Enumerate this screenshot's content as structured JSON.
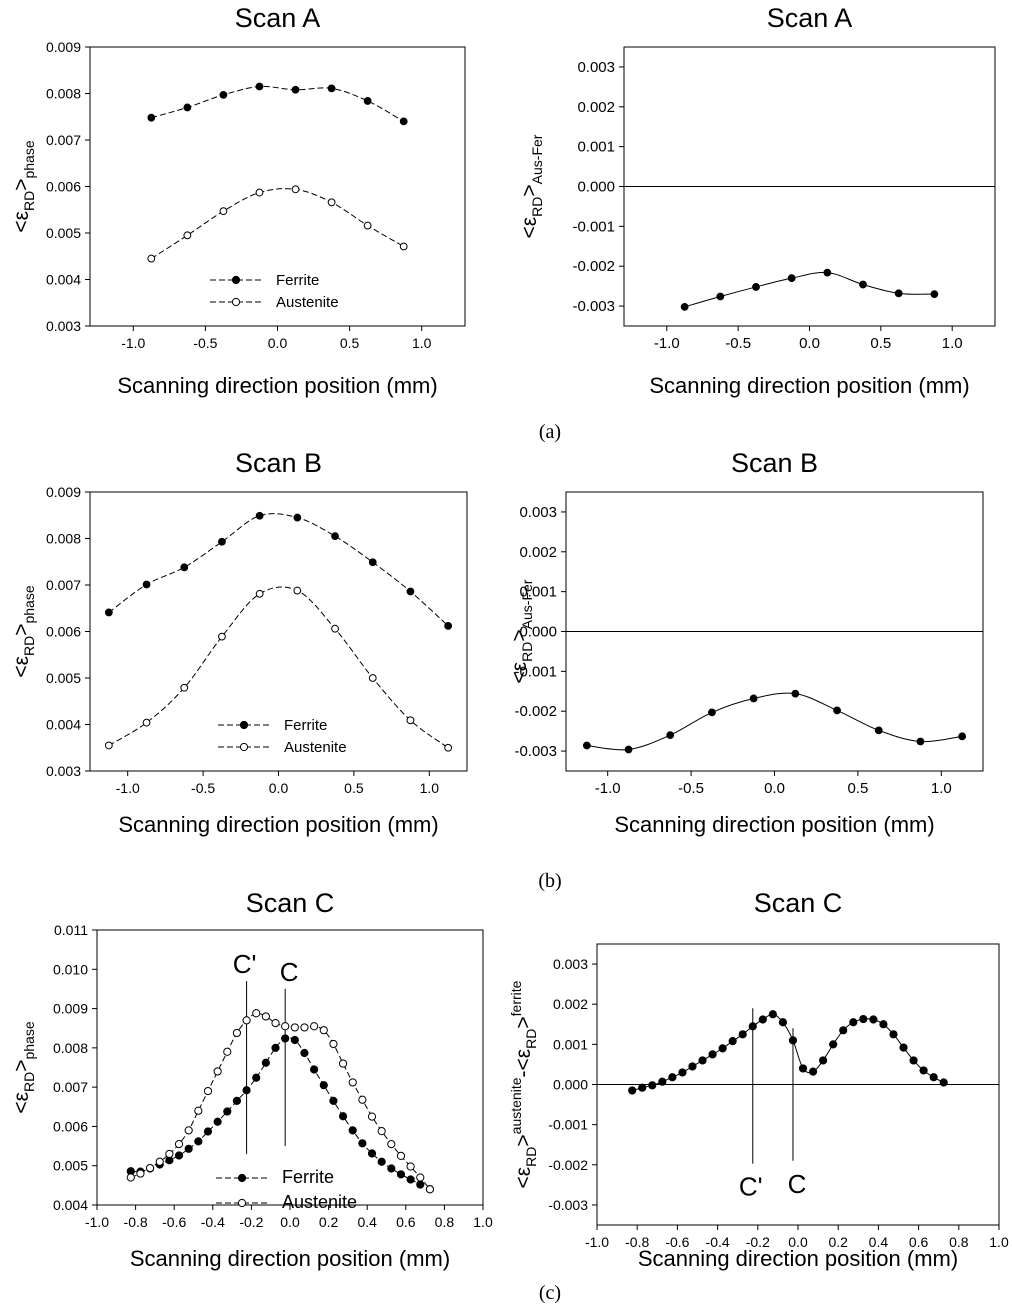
{
  "captions": [
    "(a)",
    "(b)",
    "(c)"
  ],
  "chart_data": [
    {
      "id": "a_left",
      "type": "line",
      "title": "Scan A",
      "xlabel": "Scanning direction position (mm)",
      "ylabel": {
        "main": "<ε",
        "sub": "RD",
        "rest": ">",
        "tail": "phase"
      },
      "xlim": [
        -1.3,
        1.3
      ],
      "ylim": [
        0.003,
        0.009
      ],
      "xticks": [
        -1.0,
        -0.5,
        0.0,
        0.5,
        1.0
      ],
      "xtick_labels": [
        "-1.0",
        "-0.5",
        "0.0",
        "0.5",
        "1.0"
      ],
      "yticks": [
        0.003,
        0.004,
        0.005,
        0.006,
        0.007,
        0.008,
        0.009
      ],
      "ytick_labels": [
        "0.003",
        "0.004",
        "0.005",
        "0.006",
        "0.007",
        "0.008",
        "0.009"
      ],
      "legend": {
        "position": "bottom-center",
        "entries": [
          "Ferrite",
          "Austenite"
        ]
      },
      "series": [
        {
          "name": "Ferrite",
          "marker": "filled",
          "line": "dashed",
          "x": [
            -0.875,
            -0.625,
            -0.375,
            -0.125,
            0.125,
            0.375,
            0.625,
            0.875
          ],
          "y": [
            0.00748,
            0.0077,
            0.00797,
            0.00815,
            0.00808,
            0.00811,
            0.00784,
            0.0074
          ]
        },
        {
          "name": "Austenite",
          "marker": "open",
          "line": "dashed",
          "x": [
            -0.875,
            -0.625,
            -0.375,
            -0.125,
            0.125,
            0.375,
            0.625,
            0.875
          ],
          "y": [
            0.00445,
            0.00495,
            0.00547,
            0.00587,
            0.00594,
            0.00566,
            0.00516,
            0.00471
          ]
        }
      ]
    },
    {
      "id": "a_right",
      "type": "line",
      "title": "Scan A",
      "xlabel": "Scanning direction position (mm)",
      "ylabel": {
        "main": "<ε",
        "sub": "RD",
        "rest": ">",
        "tail": "Aus-Fer"
      },
      "xlim": [
        -1.3,
        1.3
      ],
      "ylim": [
        -0.0035,
        0.0035
      ],
      "xticks": [
        -1.0,
        -0.5,
        0.0,
        0.5,
        1.0
      ],
      "xtick_labels": [
        "-1.0",
        "-0.5",
        "0.0",
        "0.5",
        "1.0"
      ],
      "yticks": [
        -0.003,
        -0.002,
        -0.001,
        0.0,
        0.001,
        0.002,
        0.003
      ],
      "ytick_labels": [
        "-0.003",
        "-0.002",
        "-0.001",
        "0.000",
        "0.001",
        "0.002",
        "0.003"
      ],
      "zero_line": true,
      "series": [
        {
          "marker": "filled",
          "line": "solid",
          "x": [
            -0.875,
            -0.625,
            -0.375,
            -0.125,
            0.125,
            0.375,
            0.625,
            0.875
          ],
          "y": [
            -0.00302,
            -0.00276,
            -0.00252,
            -0.0023,
            -0.00216,
            -0.00246,
            -0.00268,
            -0.0027
          ]
        }
      ]
    },
    {
      "id": "b_left",
      "type": "line",
      "title": "Scan B",
      "xlabel": "Scanning direction position (mm)",
      "ylabel": {
        "main": "<ε",
        "sub": "RD",
        "rest": ">",
        "tail": "phase"
      },
      "xlim": [
        -1.25,
        1.25
      ],
      "ylim": [
        0.003,
        0.009
      ],
      "xticks": [
        -1.0,
        -0.5,
        0.0,
        0.5,
        1.0
      ],
      "xtick_labels": [
        "-1.0",
        "-0.5",
        "0.0",
        "0.5",
        "1.0"
      ],
      "yticks": [
        0.003,
        0.004,
        0.005,
        0.006,
        0.007,
        0.008,
        0.009
      ],
      "ytick_labels": [
        "0.003",
        "0.004",
        "0.005",
        "0.006",
        "0.007",
        "0.008",
        "0.009"
      ],
      "legend": {
        "position": "bottom-center",
        "entries": [
          "Ferrite",
          "Austenite"
        ]
      },
      "series": [
        {
          "name": "Ferrite",
          "marker": "filled",
          "line": "dashed",
          "x": [
            -1.125,
            -0.875,
            -0.625,
            -0.375,
            -0.125,
            0.125,
            0.375,
            0.625,
            0.875,
            1.125
          ],
          "y": [
            0.00641,
            0.00701,
            0.00738,
            0.00793,
            0.00849,
            0.00845,
            0.00805,
            0.00749,
            0.00686,
            0.00612
          ]
        },
        {
          "name": "Austenite",
          "marker": "open",
          "line": "dashed",
          "x": [
            -1.125,
            -0.875,
            -0.625,
            -0.375,
            -0.125,
            0.125,
            0.375,
            0.625,
            0.875,
            1.125
          ],
          "y": [
            0.00355,
            0.00404,
            0.00479,
            0.00589,
            0.00681,
            0.00688,
            0.00606,
            0.005,
            0.00409,
            0.0035
          ]
        }
      ]
    },
    {
      "id": "b_right",
      "type": "line",
      "title": "Scan B",
      "xlabel": "Scanning direction position (mm)",
      "ylabel": {
        "main": "<ε",
        "sub": "RD",
        "rest": ">",
        "tail": "Aus-Fer"
      },
      "xlim": [
        -1.25,
        1.25
      ],
      "ylim": [
        -0.0035,
        0.0035
      ],
      "xticks": [
        -1.0,
        -0.5,
        0.0,
        0.5,
        1.0
      ],
      "xtick_labels": [
        "-1.0",
        "-0.5",
        "0.0",
        "0.5",
        "1.0"
      ],
      "yticks": [
        -0.003,
        -0.002,
        -0.001,
        0.0,
        0.001,
        0.002,
        0.003
      ],
      "ytick_labels": [
        "-0.003",
        "-0.002",
        "-0.001",
        "0.000",
        "0.001",
        "0.002",
        "0.003"
      ],
      "zero_line": true,
      "series": [
        {
          "marker": "filled",
          "line": "solid",
          "x": [
            -1.125,
            -0.875,
            -0.625,
            -0.375,
            -0.125,
            0.125,
            0.375,
            0.625,
            0.875,
            1.125
          ],
          "y": [
            -0.00286,
            -0.00296,
            -0.0026,
            -0.00203,
            -0.00168,
            -0.00156,
            -0.00198,
            -0.00248,
            -0.00276,
            -0.00263
          ]
        }
      ]
    },
    {
      "id": "c_left",
      "type": "line",
      "title": "Scan C",
      "xlabel": "Scanning direction position (mm)",
      "ylabel": {
        "main": "<ε",
        "sub": "RD",
        "rest": ">",
        "tail": "phase"
      },
      "xlim": [
        -1.0,
        1.0
      ],
      "ylim": [
        0.004,
        0.011
      ],
      "xticks": [
        -1.0,
        -0.8,
        -0.6,
        -0.4,
        -0.2,
        0.0,
        0.2,
        0.4,
        0.6,
        0.8,
        1.0
      ],
      "xtick_labels": [
        "-1.0",
        "-0.8",
        "-0.6",
        "-0.4",
        "-0.2",
        "0.0",
        "0.2",
        "0.4",
        "0.6",
        "0.8",
        "1.0"
      ],
      "yticks": [
        0.004,
        0.005,
        0.006,
        0.007,
        0.008,
        0.009,
        0.01,
        0.011
      ],
      "ytick_labels": [
        "0.004",
        "0.005",
        "0.006",
        "0.007",
        "0.008",
        "0.009",
        "0.010",
        "0.011"
      ],
      "legend": {
        "position": "bottom-center",
        "entries": [
          "Ferrite",
          "Austenite"
        ]
      },
      "annotations": [
        {
          "label": "C'",
          "x": -0.225,
          "y_from": 0.0053,
          "y_to": 0.0097
        },
        {
          "label": "C",
          "x": -0.025,
          "y_from": 0.0055,
          "y_to": 0.0095
        }
      ],
      "series": [
        {
          "name": "Ferrite",
          "marker": "filled",
          "line": "dashed",
          "x": [
            -0.825,
            -0.775,
            -0.725,
            -0.675,
            -0.625,
            -0.575,
            -0.525,
            -0.475,
            -0.425,
            -0.375,
            -0.325,
            -0.275,
            -0.225,
            -0.175,
            -0.125,
            -0.075,
            -0.025,
            0.025,
            0.075,
            0.125,
            0.175,
            0.225,
            0.275,
            0.325,
            0.375,
            0.425,
            0.475,
            0.525,
            0.575,
            0.625,
            0.675,
            0.725
          ],
          "y": [
            0.00486,
            0.00485,
            0.00493,
            0.00503,
            0.00514,
            0.00526,
            0.00543,
            0.00562,
            0.00587,
            0.00612,
            0.00638,
            0.00665,
            0.00692,
            0.00724,
            0.00762,
            0.008,
            0.00824,
            0.0082,
            0.00787,
            0.00745,
            0.00705,
            0.00665,
            0.00626,
            0.0059,
            0.00557,
            0.00531,
            0.0051,
            0.00493,
            0.00478,
            0.00465,
            0.00452,
            0.0044
          ]
        },
        {
          "name": "Austenite",
          "marker": "open",
          "line": "dashed",
          "x": [
            -0.825,
            -0.775,
            -0.725,
            -0.675,
            -0.625,
            -0.575,
            -0.525,
            -0.475,
            -0.425,
            -0.375,
            -0.325,
            -0.275,
            -0.225,
            -0.175,
            -0.125,
            -0.075,
            -0.025,
            0.025,
            0.075,
            0.125,
            0.175,
            0.225,
            0.275,
            0.325,
            0.375,
            0.425,
            0.475,
            0.525,
            0.575,
            0.625,
            0.675,
            0.725
          ],
          "y": [
            0.0047,
            0.0048,
            0.00494,
            0.0051,
            0.0053,
            0.00555,
            0.0059,
            0.0064,
            0.0069,
            0.0074,
            0.0079,
            0.00838,
            0.0087,
            0.00888,
            0.0088,
            0.00863,
            0.00855,
            0.00852,
            0.00852,
            0.00855,
            0.00845,
            0.0081,
            0.0076,
            0.00712,
            0.00668,
            0.00625,
            0.00588,
            0.00555,
            0.00525,
            0.00498,
            0.0047,
            0.0044
          ]
        }
      ]
    },
    {
      "id": "c_right",
      "type": "line",
      "title": "Scan C",
      "xlabel": "Scanning direction position (mm)",
      "ylabel": {
        "main": "<ε",
        "sub": "RD",
        "rest": ">",
        "sup": "austenite",
        "dash": "-",
        "main2": "<ε",
        "sub2": "RD",
        "rest2": ">",
        "sup2": "ferrite"
      },
      "xlim": [
        -1.0,
        1.0
      ],
      "ylim": [
        -0.0035,
        0.0035
      ],
      "xticks": [
        -1.0,
        -0.8,
        -0.6,
        -0.4,
        -0.2,
        0.0,
        0.2,
        0.4,
        0.6,
        0.8,
        1.0
      ],
      "xtick_labels": [
        "-1.0",
        "-0.8",
        "-0.6",
        "-0.4",
        "-0.2",
        "0.0",
        "0.2",
        "0.4",
        "0.6",
        "0.8",
        "1.0"
      ],
      "yticks": [
        -0.003,
        -0.002,
        -0.001,
        0.0,
        0.001,
        0.002,
        0.003
      ],
      "ytick_labels": [
        "-0.003",
        "-0.002",
        "-0.001",
        "0.000",
        "0.001",
        "0.002",
        "0.003"
      ],
      "zero_line": true,
      "annotations": [
        {
          "label": "C'",
          "x": -0.225,
          "y_from": -0.00197,
          "y_to": 0.0019,
          "label_below": true
        },
        {
          "label": "C",
          "x": -0.025,
          "y_from": -0.0019,
          "y_to": 0.0014,
          "label_below": true
        }
      ],
      "series": [
        {
          "marker": "filled",
          "line": "solid",
          "x": [
            -0.825,
            -0.775,
            -0.725,
            -0.675,
            -0.625,
            -0.575,
            -0.525,
            -0.475,
            -0.425,
            -0.375,
            -0.325,
            -0.275,
            -0.225,
            -0.175,
            -0.125,
            -0.075,
            -0.025,
            0.025,
            0.075,
            0.125,
            0.175,
            0.225,
            0.275,
            0.325,
            0.375,
            0.425,
            0.475,
            0.525,
            0.575,
            0.625,
            0.675,
            0.725
          ],
          "y": [
            -0.00015,
            -8e-05,
            -2e-05,
            7e-05,
            0.00018,
            0.0003,
            0.00045,
            0.0006,
            0.00075,
            0.0009,
            0.00108,
            0.00125,
            0.00145,
            0.00162,
            0.00175,
            0.00155,
            0.0011,
            0.0004,
            0.00032,
            0.0006,
            0.001,
            0.00135,
            0.00155,
            0.00163,
            0.00162,
            0.0015,
            0.00125,
            0.00092,
            0.0006,
            0.00035,
            0.00018,
            5e-05
          ]
        }
      ]
    }
  ]
}
